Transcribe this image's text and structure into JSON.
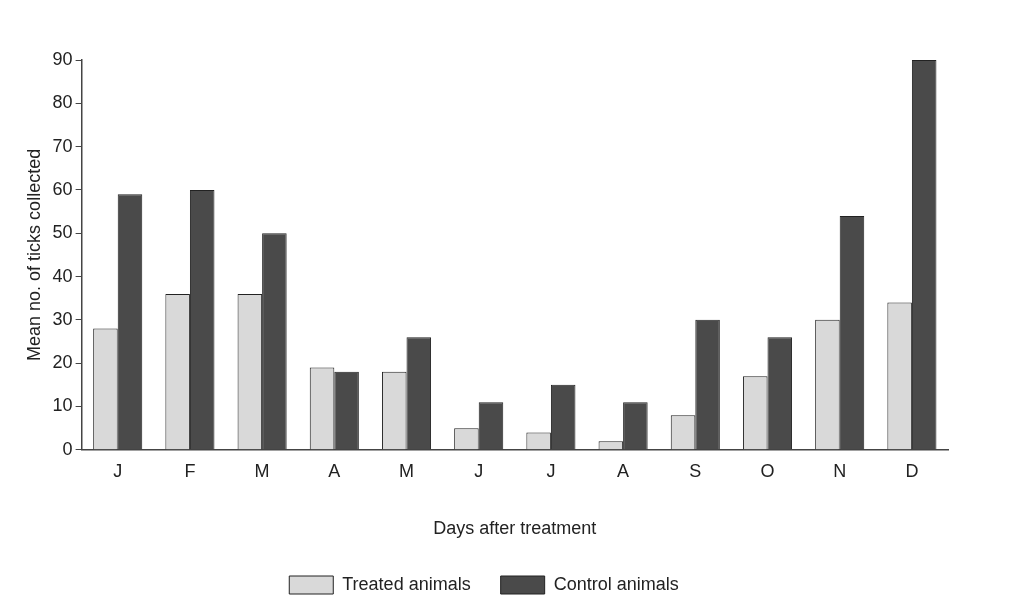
{
  "chart_data": {
    "type": "bar",
    "xlabel": "Days after treatment",
    "ylabel": "Mean no. of ticks collected",
    "categories": [
      "J",
      "F",
      "M",
      "A",
      "M",
      "J",
      "J",
      "A",
      "S",
      "O",
      "N",
      "D"
    ],
    "series": [
      {
        "name": "Treated animals",
        "color": "#d9d9d9",
        "values": [
          28,
          36,
          36,
          19,
          18,
          5,
          4,
          2,
          8,
          17,
          30,
          34
        ]
      },
      {
        "name": "Control animals",
        "color": "#4a4a4a",
        "values": [
          59,
          60,
          50,
          18,
          26,
          11,
          15,
          11,
          30,
          26,
          54,
          90
        ]
      }
    ],
    "ylim": [
      0,
      90
    ],
    "yticks": [
      0,
      10,
      20,
      30,
      40,
      50,
      60,
      70,
      80,
      90
    ],
    "grid": false,
    "legend": "bottom"
  }
}
